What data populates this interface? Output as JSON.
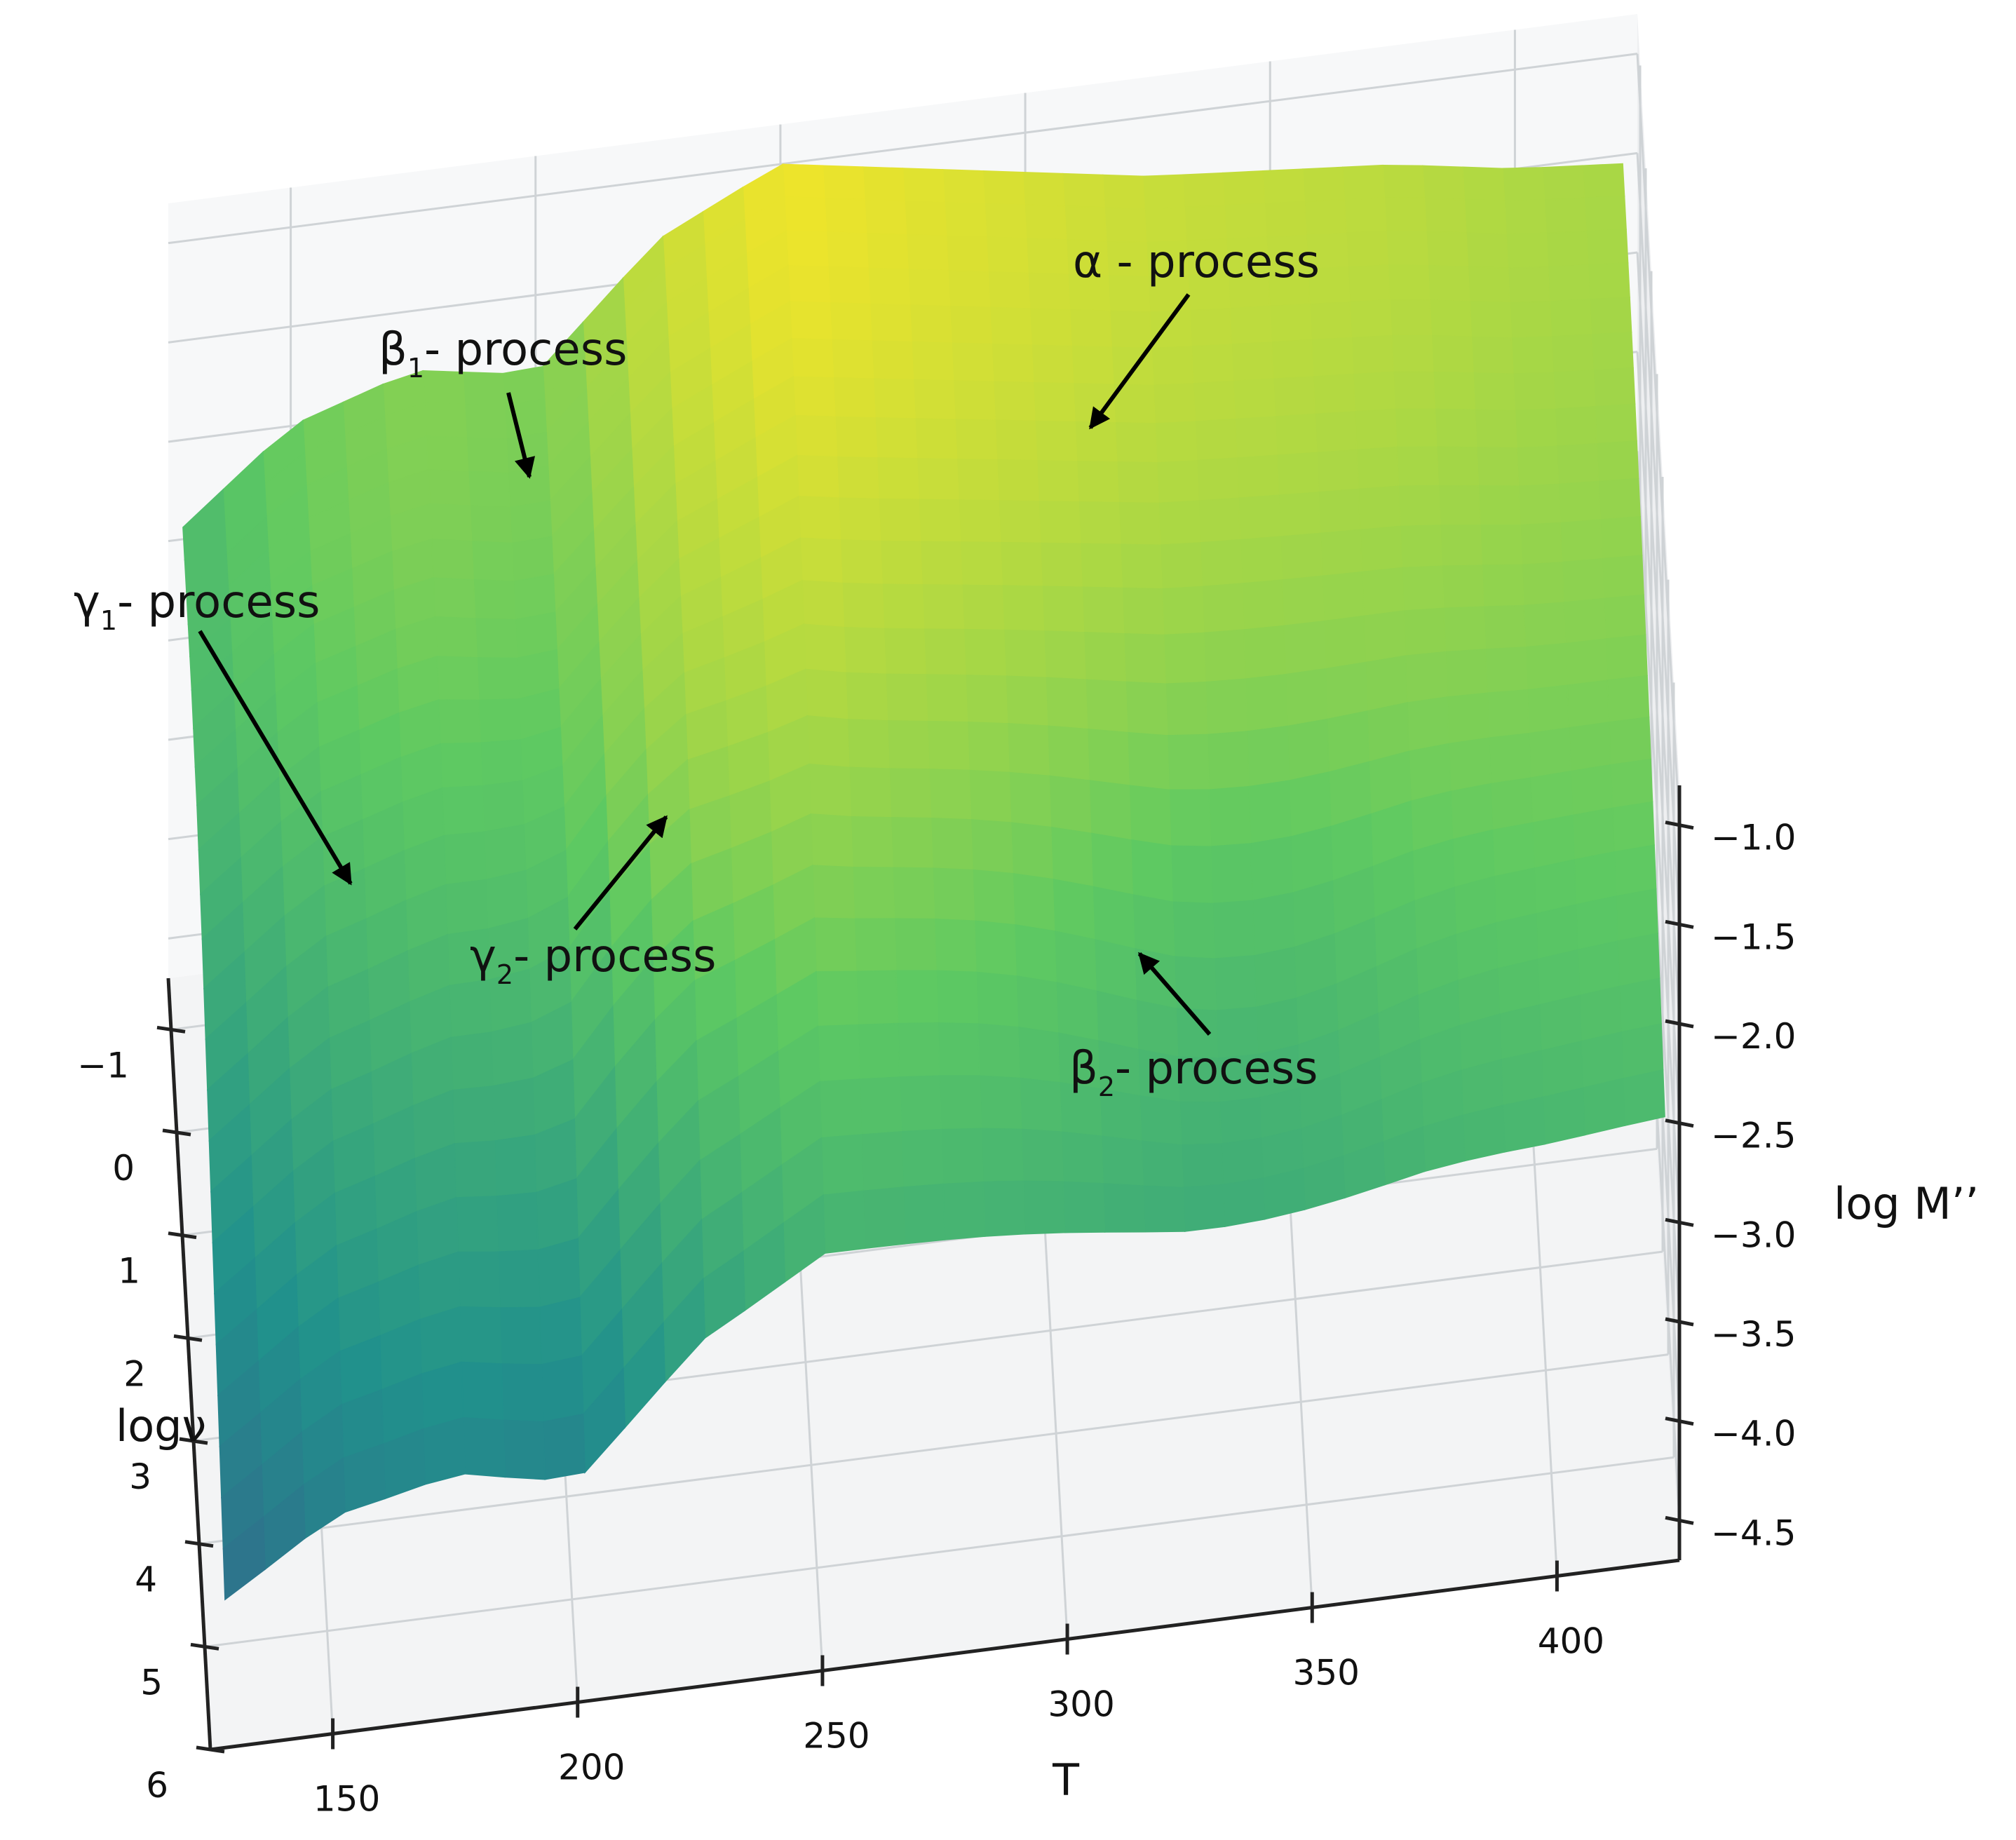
{
  "chart_data": {
    "type": "surface",
    "title": "",
    "xlabel": "T",
    "ylabel": "logν",
    "zlabel": "log M’’",
    "x_ticks": [
      150,
      200,
      250,
      300,
      350,
      400
    ],
    "y_ticks": [
      -1,
      0,
      1,
      2,
      3,
      4,
      5,
      6
    ],
    "z_ticks": [
      -1.0,
      -1.5,
      -2.0,
      -2.5,
      -3.0,
      -3.5,
      -4.0,
      -4.5
    ],
    "xlim": [
      125,
      425
    ],
    "ylim": [
      -1.5,
      6
    ],
    "zlim": [
      -4.7,
      -0.8
    ],
    "grid": true,
    "colormap": "viridis",
    "annotations": [
      {
        "label": "α - process",
        "T": 330,
        "logv": -1.5
      },
      {
        "label": "β",
        "sub": "1",
        "suffix": "- process",
        "T": 190,
        "logv": -1.5
      },
      {
        "label": "γ",
        "sub": "1",
        "suffix": "- process",
        "T": 130,
        "logv": 1.0
      },
      {
        "label": "γ",
        "sub": "2",
        "suffix": "- process",
        "T": 205,
        "logv": 3.0
      },
      {
        "label": "β",
        "sub": "2",
        "suffix": "- process",
        "T": 350,
        "logv": 3.5
      }
    ],
    "surface_profile": {
      "T_min_edge": [
        -3.0,
        -3.0,
        -3.1,
        -3.3,
        -3.6,
        -3.9,
        -4.2,
        -4.5
      ],
      "logv_min_edge_T": [
        125,
        150,
        175,
        200,
        225,
        250,
        275,
        300,
        325,
        350,
        375,
        400,
        425
      ],
      "logv_min_edge_z": [
        -2.5,
        -2.0,
        -1.8,
        -1.9,
        -1.3,
        -1.0,
        -1.1,
        -1.2,
        -1.3,
        -1.35,
        -1.4,
        -1.5,
        -1.55
      ]
    }
  }
}
